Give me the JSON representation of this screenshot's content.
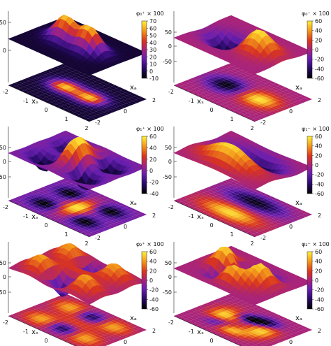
{
  "chart_data": [
    {
      "type": "surface",
      "title": "φ₀⁺ × 100",
      "xlabel": "xₛ",
      "ylabel": "xₐ",
      "x_ticks": [
        "-2",
        "-1",
        "0",
        "1",
        "2"
      ],
      "y_ticks": [
        "-2",
        "0",
        "2"
      ],
      "z_ticks": [
        "50",
        "0"
      ],
      "colorbar": {
        "range": [
          -10,
          70
        ],
        "ticks": [
          "70",
          "60",
          "50",
          "40",
          "30",
          "20",
          "10",
          "0",
          "-10"
        ]
      },
      "shape": "two humps along xₛ at xₐ≈0, peak ≈65"
    },
    {
      "type": "surface",
      "title": "φ₀⁻ × 100",
      "xlabel": "xₛ",
      "ylabel": "xₐ",
      "x_ticks": [
        "-2",
        "-1",
        "0",
        "1",
        "2"
      ],
      "y_ticks": [
        "-2",
        "0",
        "2"
      ],
      "z_ticks": [
        "50",
        "0",
        "-50"
      ],
      "colorbar": {
        "range": [
          -60,
          60
        ],
        "ticks": [
          "60",
          "40",
          "20",
          "0",
          "-20",
          "-40",
          "-60"
        ]
      },
      "shape": "antisymmetric: positive lobe xₛ>0, negative lobe xₛ<0, amplitude ≈55"
    },
    {
      "type": "surface",
      "title": "φ₁⁺ × 100",
      "xlabel": "xₛ",
      "ylabel": "xₐ",
      "x_ticks": [
        "-2",
        "-1",
        "0",
        "1",
        "2"
      ],
      "y_ticks": [
        "-2",
        "0",
        "2"
      ],
      "z_ticks": [
        "50",
        "0",
        "-50"
      ],
      "colorbar": {
        "range": [
          -40,
          60
        ],
        "ticks": [
          "60",
          "40",
          "20",
          "0",
          "-20",
          "-40"
        ]
      },
      "shape": "central positive ridge with four negative side pockets"
    },
    {
      "type": "surface",
      "title": "φ₁⁻ × 100",
      "xlabel": "xₛ",
      "ylabel": "xₐ",
      "x_ticks": [
        "-2",
        "-1",
        "0",
        "1",
        "2"
      ],
      "y_ticks": [
        "-2",
        "0",
        "2"
      ],
      "z_ticks": [
        "50",
        "0",
        "-50"
      ],
      "colorbar": {
        "range": [
          -60,
          60
        ],
        "ticks": [
          "60",
          "40",
          "20",
          "0",
          "-20",
          "-40",
          "-60"
        ]
      },
      "shape": "antisymmetric in xₐ: positive lobe xₐ<0, negative lobe xₐ>0"
    },
    {
      "type": "surface",
      "title": "φ₂⁺ × 100",
      "xlabel": "xₛ",
      "ylabel": "xₐ",
      "x_ticks": [
        "-2",
        "-1",
        "0",
        "1",
        "2"
      ],
      "y_ticks": [
        "-2",
        "0",
        "2"
      ],
      "z_ticks": [
        "50",
        "0",
        "-50"
      ],
      "colorbar": {
        "range": [
          -60,
          60
        ],
        "ticks": [
          "60",
          "40",
          "20",
          "0",
          "-20",
          "-40",
          "-60"
        ]
      },
      "shape": "checkerboard of positive corners and negative edges"
    },
    {
      "type": "surface",
      "title": "φ₂⁻ × 100",
      "xlabel": "xₛ",
      "ylabel": "xₐ",
      "x_ticks": [
        "-2",
        "-1",
        "0",
        "1",
        "2"
      ],
      "y_ticks": [
        "-2",
        "0",
        "2"
      ],
      "z_ticks": [
        "50",
        "0",
        "-50"
      ],
      "colorbar": {
        "range": [
          -60,
          60
        ],
        "ticks": [
          "60",
          "40",
          "20",
          "0",
          "-20",
          "-40",
          "-60"
        ]
      },
      "shape": "rotated quadrupole with multiple lobes"
    }
  ]
}
